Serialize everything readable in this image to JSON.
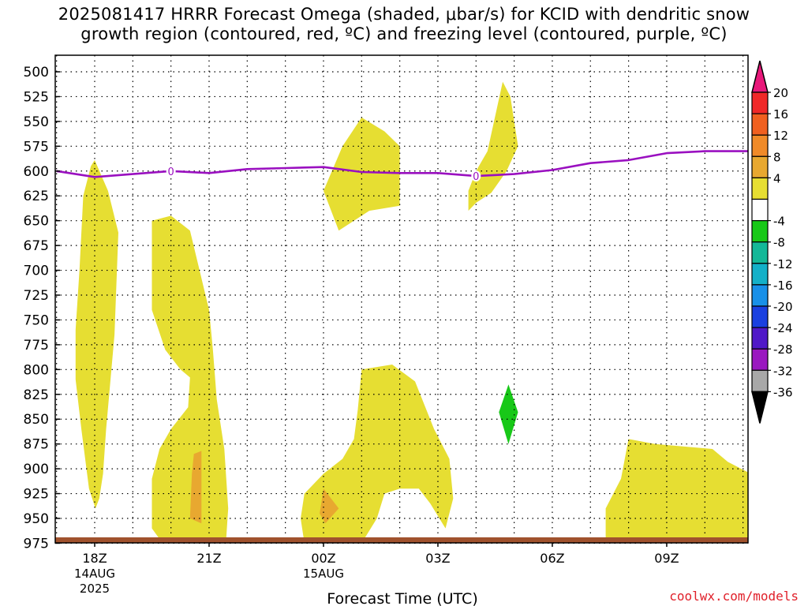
{
  "title": {
    "line1": "2025081417 HRRR Forecast Omega (shaded, μbar/s) for KCID with dendritic snow",
    "line2": "growth region (contoured, red, ºC) and freezing level (contoured, purple, ºC)"
  },
  "credit": "coolwx.com/models",
  "chart_data": {
    "type": "time-height",
    "xlabel": "Forecast Time (UTC)",
    "ylabel": "",
    "x_range_hours": [
      -1,
      17.2
    ],
    "y_range_hPa": [
      485,
      985
    ],
    "y_scale": "inverted-linear",
    "grid": true,
    "y_ticks": [
      500,
      525,
      550,
      575,
      600,
      625,
      650,
      675,
      700,
      725,
      750,
      775,
      800,
      825,
      850,
      875,
      900,
      925,
      950,
      975
    ],
    "x_ticks": [
      {
        "hour": 0,
        "label": "18Z",
        "sub": [
          "14AUG",
          "2025"
        ]
      },
      {
        "hour": 3,
        "label": "21Z",
        "sub": []
      },
      {
        "hour": 6,
        "label": "00Z",
        "sub": [
          "15AUG"
        ]
      },
      {
        "hour": 9,
        "label": "03Z",
        "sub": []
      },
      {
        "hour": 12,
        "label": "06Z",
        "sub": []
      },
      {
        "hour": 15,
        "label": "09Z",
        "sub": []
      }
    ],
    "colorbar": {
      "labels": [
        "20",
        "16",
        "12",
        "8",
        "4",
        "-4",
        "-8",
        "-12",
        "-16",
        "-20",
        "-24",
        "-28",
        "-32",
        "-36"
      ],
      "colors": [
        "#e8187a",
        "#f02828",
        "#f06020",
        "#f08a28",
        "#e8a830",
        "#e6de32",
        "#ffffff",
        "#18c818",
        "#14b898",
        "#14b0c8",
        "#1890e8",
        "#1a40e0",
        "#5018c8",
        "#9a18c0",
        "#a8a8a8",
        "#000000"
      ]
    },
    "freezing_level": {
      "label": "0",
      "color": "#9a10c0",
      "points": [
        [
          -1,
          600
        ],
        [
          0,
          606
        ],
        [
          1,
          603
        ],
        [
          2,
          600
        ],
        [
          3,
          602
        ],
        [
          4,
          598
        ],
        [
          5,
          597
        ],
        [
          6,
          596
        ],
        [
          7,
          601
        ],
        [
          8,
          602
        ],
        [
          9,
          602
        ],
        [
          10,
          605
        ],
        [
          11,
          603
        ],
        [
          12,
          599
        ],
        [
          13,
          592
        ],
        [
          14,
          589
        ],
        [
          15,
          582
        ],
        [
          16,
          580
        ],
        [
          17.2,
          580
        ]
      ],
      "label_hours": [
        2,
        10
      ]
    },
    "omega_regions": [
      {
        "level": "4 to 8",
        "color": "#e6de32",
        "points": [
          [
            0,
            589
          ],
          [
            0.35,
            620
          ],
          [
            0.62,
            662
          ],
          [
            0.52,
            765
          ],
          [
            0.3,
            860
          ],
          [
            0.22,
            905
          ],
          [
            0.12,
            930
          ],
          [
            0.02,
            940
          ],
          [
            -0.15,
            920
          ],
          [
            -0.35,
            860
          ],
          [
            -0.5,
            810
          ],
          [
            -0.5,
            760
          ],
          [
            -0.4,
            700
          ],
          [
            -0.3,
            625
          ],
          [
            -0.1,
            595
          ]
        ]
      },
      {
        "level": "4 to 8",
        "color": "#e6de32",
        "points": [
          [
            1.5,
            650
          ],
          [
            2,
            645
          ],
          [
            2.5,
            660
          ],
          [
            3,
            740
          ],
          [
            3.1,
            780
          ],
          [
            3.2,
            830
          ],
          [
            3.4,
            880
          ],
          [
            3.5,
            940
          ],
          [
            3.45,
            970
          ],
          [
            3.2,
            976
          ],
          [
            1.8,
            976
          ],
          [
            1.5,
            960
          ],
          [
            1.5,
            910
          ],
          [
            1.7,
            880
          ],
          [
            2,
            860
          ],
          [
            2.45,
            838
          ],
          [
            2.5,
            808
          ],
          [
            2.25,
            800
          ],
          [
            1.85,
            780
          ],
          [
            1.5,
            740
          ],
          [
            1.5,
            700
          ]
        ]
      },
      {
        "level": "8 to 12",
        "color": "#e8a830",
        "points": [
          [
            2.6,
            885
          ],
          [
            2.8,
            882
          ],
          [
            2.8,
            955
          ],
          [
            2.5,
            950
          ],
          [
            2.55,
            905
          ]
        ]
      },
      {
        "level": "4 to 8",
        "color": "#e6de32",
        "points": [
          [
            7.0,
            800
          ],
          [
            7.8,
            795
          ],
          [
            8.4,
            812
          ],
          [
            8.9,
            860
          ],
          [
            9.3,
            890
          ],
          [
            9.4,
            930
          ],
          [
            9.2,
            960
          ],
          [
            8.8,
            935
          ],
          [
            8.5,
            920
          ],
          [
            8.0,
            920
          ],
          [
            7.6,
            925
          ],
          [
            7.4,
            950
          ],
          [
            7.0,
            975
          ],
          [
            6.0,
            978
          ],
          [
            5.5,
            975
          ],
          [
            5.4,
            950
          ],
          [
            5.5,
            925
          ],
          [
            6.0,
            905
          ],
          [
            6.5,
            890
          ],
          [
            6.8,
            870
          ],
          [
            6.9,
            840
          ]
        ]
      },
      {
        "level": "8 to 12",
        "color": "#e8a830",
        "points": [
          [
            6.0,
            920
          ],
          [
            6.4,
            940
          ],
          [
            6.05,
            955
          ],
          [
            5.9,
            945
          ]
        ]
      },
      {
        "level": "4 to 8",
        "color": "#e6de32",
        "points": [
          [
            7.0,
            546
          ],
          [
            7.6,
            560
          ],
          [
            8.0,
            575
          ],
          [
            8.0,
            635
          ],
          [
            7.2,
            640
          ],
          [
            6.4,
            660
          ],
          [
            6.0,
            620
          ],
          [
            6.5,
            575
          ]
        ]
      },
      {
        "level": "4 to 8",
        "color": "#e6de32",
        "points": [
          [
            10.7,
            510
          ],
          [
            10.9,
            525
          ],
          [
            11.1,
            575
          ],
          [
            10.8,
            600
          ],
          [
            10.4,
            622
          ],
          [
            10.0,
            632
          ],
          [
            9.8,
            640
          ],
          [
            9.8,
            620
          ],
          [
            10.0,
            600
          ],
          [
            10.3,
            580
          ]
        ]
      },
      {
        "level": "-8 to -4",
        "color": "#18c818",
        "points": [
          [
            10.85,
            815
          ],
          [
            11.1,
            843
          ],
          [
            10.85,
            875
          ],
          [
            10.6,
            843
          ]
        ]
      },
      {
        "level": "4 to 8",
        "color": "#e6de32",
        "points": [
          [
            14.0,
            870
          ],
          [
            14.7,
            875
          ],
          [
            16.2,
            880
          ],
          [
            16.6,
            893
          ],
          [
            17.2,
            905
          ],
          [
            17.2,
            982
          ],
          [
            14.4,
            980
          ],
          [
            13.4,
            975
          ],
          [
            13.4,
            940
          ],
          [
            13.8,
            910
          ]
        ]
      }
    ]
  }
}
